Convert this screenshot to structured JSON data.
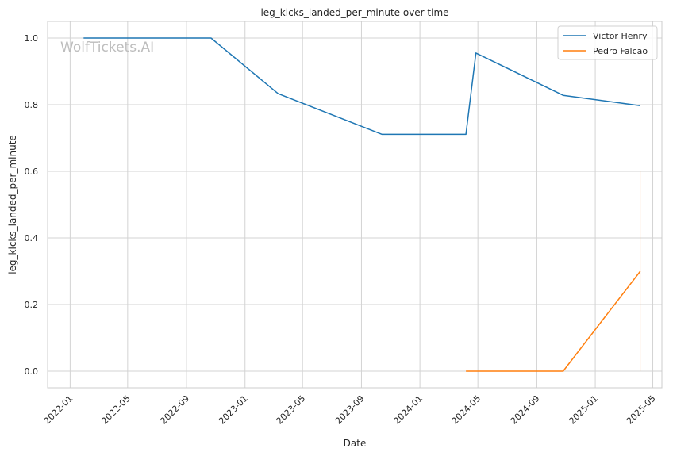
{
  "watermark": "WolfTickets.AI",
  "chart_data": {
    "type": "line",
    "title": "leg_kicks_landed_per_minute over time",
    "xlabel": "Date",
    "ylabel": "leg_kicks_landed_per_minute",
    "xlim": [
      "2021-11-15",
      "2025-05-20"
    ],
    "ylim": [
      -0.05,
      1.05
    ],
    "grid": true,
    "legend_position": "top-right",
    "x_ticks": [
      "2022-01",
      "2022-05",
      "2022-09",
      "2023-01",
      "2023-05",
      "2023-09",
      "2024-01",
      "2024-05",
      "2024-09",
      "2025-01",
      "2025-05"
    ],
    "y_ticks": [
      0.0,
      0.2,
      0.4,
      0.6,
      0.8,
      1.0
    ],
    "y_tick_labels": [
      "0.0",
      "0.2",
      "0.4",
      "0.6",
      "0.8",
      "1.0"
    ],
    "series": [
      {
        "name": "Victor Henry",
        "color": "#1f77b4",
        "x": [
          "2022-01-29",
          "2022-10-22",
          "2023-03-11",
          "2023-10-14",
          "2024-04-06",
          "2024-04-27",
          "2024-10-26",
          "2025-04-05"
        ],
        "y": [
          1.0,
          1.0,
          0.833,
          0.711,
          0.711,
          0.955,
          0.828,
          0.797
        ]
      },
      {
        "name": "Pedro Falcao",
        "color": "#ff7f0e",
        "x": [
          "2024-04-06",
          "2024-10-26",
          "2025-04-05"
        ],
        "y": [
          0.0,
          0.0,
          0.3
        ]
      }
    ]
  }
}
